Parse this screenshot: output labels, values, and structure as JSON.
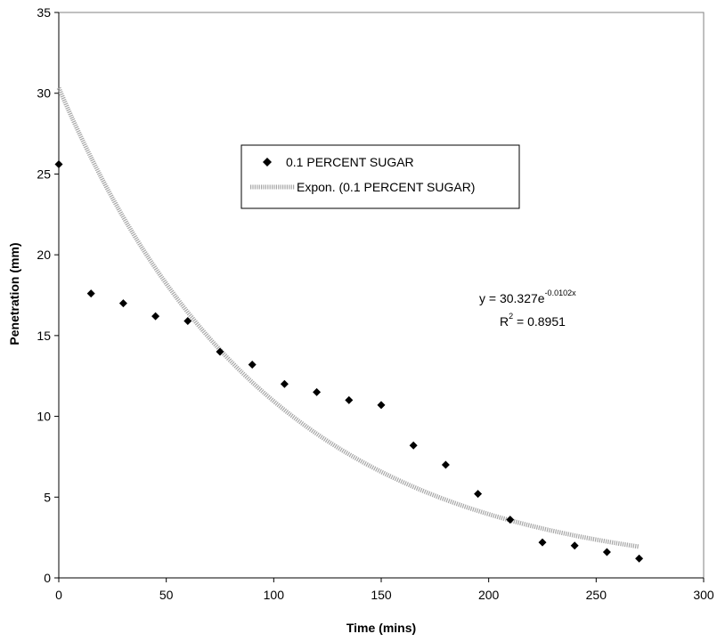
{
  "chart_data": {
    "type": "scatter",
    "xlabel": "Time (mins)",
    "ylabel": "Penetration (mm)",
    "xlim": [
      0,
      300
    ],
    "ylim": [
      0,
      35
    ],
    "x_ticks": [
      "0",
      "50",
      "100",
      "150",
      "200",
      "250",
      "300"
    ],
    "y_ticks": [
      "0",
      "5",
      "10",
      "15",
      "20",
      "25",
      "30",
      "35"
    ],
    "grid": false,
    "legend_position": "upper-center",
    "series": [
      {
        "name": "0.1 PERCENT SUGAR",
        "marker": "diamond",
        "color": "#000000",
        "x": [
          0,
          15,
          30,
          45,
          60,
          75,
          90,
          105,
          120,
          135,
          150,
          165,
          180,
          195,
          210,
          225,
          240,
          255,
          270
        ],
        "y": [
          25.6,
          17.6,
          17.0,
          16.2,
          15.9,
          14.0,
          13.2,
          12.0,
          11.5,
          11.0,
          10.7,
          8.2,
          7.0,
          5.2,
          3.6,
          2.2,
          2.0,
          1.6,
          1.2
        ]
      }
    ],
    "trendline": {
      "name": "Expon. (0.1 PERCENT SUGAR)",
      "type": "exponential",
      "a": 30.327,
      "b": -0.0102,
      "x_range": [
        0,
        270
      ],
      "color": "#a6a6a6"
    },
    "equation": {
      "line1_main": "y = 30.327e",
      "line1_exp": "-0.0102x",
      "line2_pre": "R",
      "line2_sup": "2",
      "line2_post": " = 0.8951"
    }
  }
}
